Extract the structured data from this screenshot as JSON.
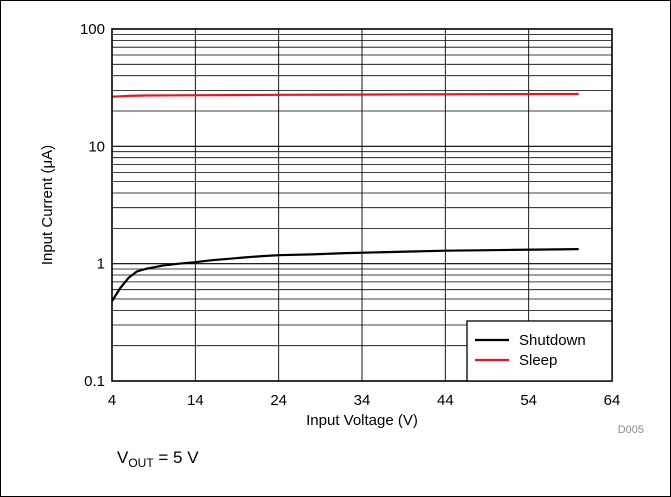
{
  "chart_data": {
    "type": "line",
    "title": "",
    "xlabel": "Input Voltage (V)",
    "ylabel": "Input Current (μA)",
    "xlim": [
      4,
      64
    ],
    "ylim": [
      0.1,
      100
    ],
    "y_scale": "log",
    "x_ticks": [
      4,
      14,
      24,
      34,
      44,
      54,
      64
    ],
    "x_tick_labels": [
      "4",
      "14",
      "24",
      "34",
      "44",
      "54",
      "64"
    ],
    "y_ticks": [
      0.1,
      1,
      10,
      100
    ],
    "y_tick_labels": [
      "0.1",
      "1",
      "10",
      "100"
    ],
    "grid": true,
    "legend_position": "bottom-right",
    "series": [
      {
        "name": "Shutdown",
        "color": "#000000",
        "points": [
          [
            4,
            0.48
          ],
          [
            5,
            0.62
          ],
          [
            6,
            0.76
          ],
          [
            7,
            0.86
          ],
          [
            8,
            0.9
          ],
          [
            10,
            0.96
          ],
          [
            12,
            1.0
          ],
          [
            14,
            1.03
          ],
          [
            16,
            1.07
          ],
          [
            18,
            1.1
          ],
          [
            20,
            1.13
          ],
          [
            22,
            1.16
          ],
          [
            24,
            1.18
          ],
          [
            28,
            1.2
          ],
          [
            32,
            1.23
          ],
          [
            36,
            1.25
          ],
          [
            40,
            1.27
          ],
          [
            44,
            1.29
          ],
          [
            48,
            1.3
          ],
          [
            52,
            1.31
          ],
          [
            56,
            1.32
          ],
          [
            60,
            1.33
          ]
        ]
      },
      {
        "name": "Sleep",
        "color": "#e8161c",
        "points": [
          [
            4,
            26.5
          ],
          [
            6,
            26.9
          ],
          [
            8,
            27.1
          ],
          [
            12,
            27.2
          ],
          [
            16,
            27.3
          ],
          [
            20,
            27.4
          ],
          [
            24,
            27.5
          ],
          [
            32,
            27.6
          ],
          [
            40,
            27.7
          ],
          [
            48,
            27.8
          ],
          [
            56,
            27.9
          ],
          [
            60,
            27.95
          ]
        ]
      }
    ],
    "annotation": "VOUT = 5 V",
    "annotation_main": "V",
    "annotation_sub": "OUT",
    "annotation_tail": " = 5 V",
    "figure_id": "D005"
  }
}
